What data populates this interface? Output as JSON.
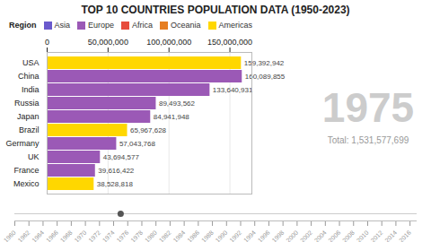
{
  "chart_data": [
    {
      "type": "bar",
      "orientation": "horizontal",
      "title": "TOP 10 COUNTRIES POPULATION DATA (1950-2023)",
      "categories": [
        "Mexico",
        "France",
        "UK",
        "Germany",
        "Brazil",
        "Japan",
        "Russia",
        "India",
        "China",
        "USA"
      ],
      "values": [
        38528818,
        39616422,
        43694577,
        57043768,
        65967628,
        84941948,
        89493562,
        133640931,
        160089855,
        159392942
      ],
      "value_labels": [
        "38,528,818",
        "39,616,422",
        "43,694,577",
        "57,043,768",
        "65,967,628",
        "84,941,948",
        "89,493,562",
        "133,640,931",
        "160,089,855",
        "159,392,942"
      ],
      "colors": [
        "#FFD700",
        "#9B59B6",
        "#9B59B6",
        "#9B59B6",
        "#FFD700",
        "#9B59B6",
        "#9B59B6",
        "#9B59B6",
        "#9B59B6",
        "#FFD700"
      ],
      "xlim": [
        0,
        168000000
      ],
      "xticks": [
        0,
        {
          "value": 50000000,
          "label": "50,000,000"
        },
        {
          "value": 100000000,
          "label": "100,000,000"
        },
        {
          "value": 150000000,
          "label": "150,000,000"
        }
      ],
      "grid": true,
      "data_labels": true,
      "legend_title": "Region",
      "legend_items": [
        {
          "label": "Asia",
          "color": "#6A5ACD"
        },
        {
          "label": "Europe",
          "color": "#9B59B6"
        },
        {
          "label": "Africa",
          "color": "#E74C3C"
        },
        {
          "label": "Oceania",
          "color": "#E67E22"
        },
        {
          "label": "Americas",
          "color": "#FFD700"
        }
      ],
      "annotations": [
        "1975",
        "Total: 1,531,577,699"
      ]
    },
    {
      "type": "timeline",
      "x": [
        1975
      ],
      "xlim": [
        1960,
        2017
      ],
      "xticks": [
        1960,
        1962,
        1964,
        1966,
        1968,
        1970,
        1972,
        1974,
        1976,
        1978,
        1980,
        1982,
        1984,
        1986,
        1988,
        1990,
        1992,
        1994,
        1996,
        1998,
        2000,
        2002,
        2004,
        2006,
        2008,
        2010,
        2012,
        2014,
        2016
      ]
    }
  ]
}
